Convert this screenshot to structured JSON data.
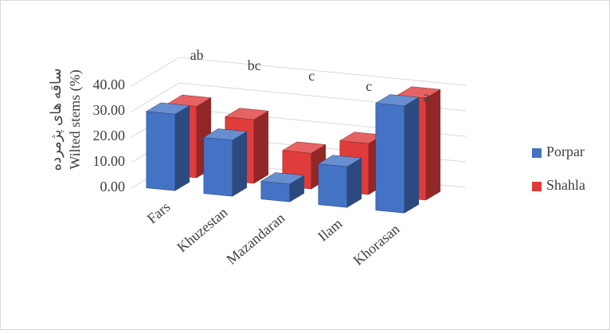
{
  "chart_data": {
    "type": "bar3d",
    "y_label": [
      "ساقه های پژمرده",
      "Wilted stems (%)"
    ],
    "categories": [
      "Fars",
      "Khuzestan",
      "Mazandaran",
      "Ilam",
      "Khorasan"
    ],
    "series": [
      {
        "name": "Porpar",
        "color": "#4472c4",
        "values": [
          30,
          22,
          7,
          16,
          42
        ]
      },
      {
        "name": "Shahla",
        "color": "#e03c3c",
        "values": [
          28,
          25,
          14,
          20,
          40
        ]
      }
    ],
    "annotations": [
      "ab",
      "bc",
      "c",
      "c",
      "a"
    ],
    "ylim": [
      0,
      40
    ],
    "yticks": [
      {
        "value": 0,
        "label": "0.00"
      },
      {
        "value": 10,
        "label": "10.00"
      },
      {
        "value": 20,
        "label": "20.00"
      },
      {
        "value": 30,
        "label": "30.00"
      },
      {
        "value": 40,
        "label": "40.00"
      }
    ],
    "grid": true,
    "legend": "right"
  }
}
